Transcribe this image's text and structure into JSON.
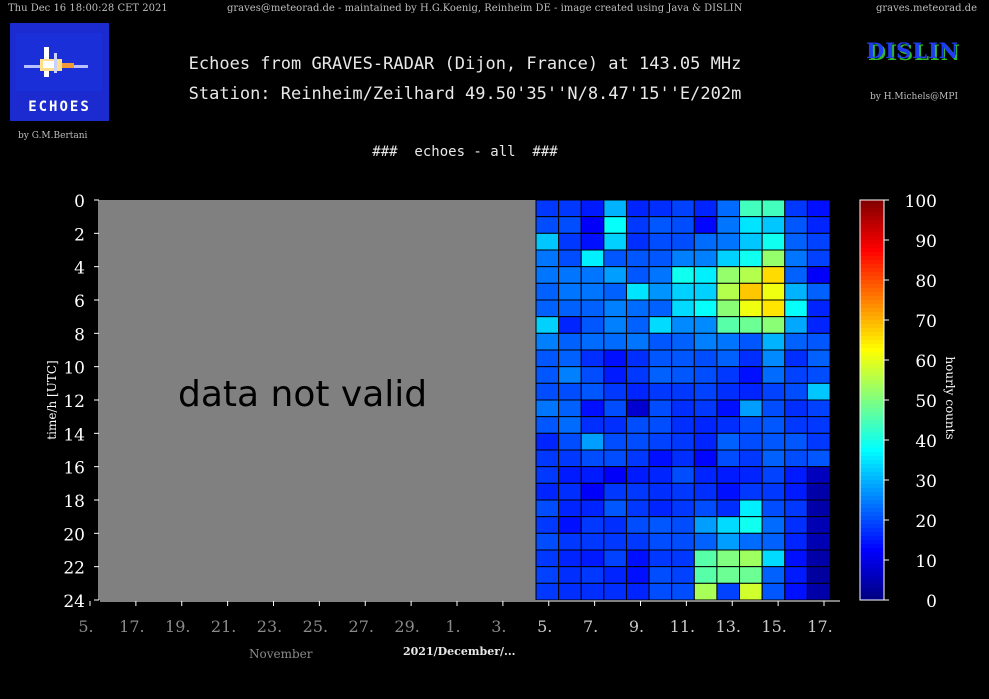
{
  "header": {
    "left": "Thu Dec 16 18:00:28 CET 2021",
    "center": "graves@meteorad.de - maintained by H.G.Koenig, Reinheim DE - image created using Java & DISLIN",
    "right": "graves.meteorad.de"
  },
  "logo": {
    "text": "ECHOES",
    "credit": "by G.M.Bertani"
  },
  "dislin": {
    "text": "DISLIN",
    "credit": "by H.Michels@MPI"
  },
  "colors": {
    "background": "#000000",
    "plot_area_invalid": "#808080",
    "grid": "#000000"
  },
  "chart_data": {
    "type": "heatmap",
    "title": "Echoes from GRAVES-RADAR (Dijon, France) at 143.05 MHz",
    "subtitle": "Station: Reinheim/Zeilhard 49.50'35''N/8.47'15''E/202m",
    "caption": "###  echoes - all  ###",
    "ylabel": "time/h [UTC]",
    "colorbar_label": "hourly counts",
    "ylim": [
      0,
      24
    ],
    "y_ticks": [
      "0",
      "2",
      "4",
      "6",
      "8",
      "10",
      "12",
      "14",
      "16",
      "18",
      "20",
      "22",
      "24"
    ],
    "x_ticks": [
      "5.",
      "17.",
      "19.",
      "21.",
      "23.",
      "25.",
      "27.",
      "29.",
      "1.",
      "3.",
      "5.",
      "7.",
      "9.",
      "11.",
      "13.",
      "15.",
      "17."
    ],
    "x_month_labels": {
      "november": "November",
      "december": "2021/December/..."
    },
    "colorbar_range": [
      0,
      100
    ],
    "colorbar_ticks": [
      "0",
      "10",
      "20",
      "30",
      "40",
      "50",
      "60",
      "70",
      "80",
      "90",
      "100"
    ],
    "invalid_region_label": "data not valid",
    "valid_days": [
      "4.",
      "5.",
      "6.",
      "7.",
      "8.",
      "9.",
      "10.",
      "11.",
      "12.",
      "13.",
      "14.",
      "15.",
      "16."
    ],
    "hourly_counts": [
      [
        18,
        18,
        15,
        30,
        16,
        17,
        19,
        16,
        23,
        44,
        44,
        18,
        14
      ],
      [
        20,
        20,
        12,
        38,
        18,
        21,
        20,
        13,
        24,
        35,
        32,
        21,
        16
      ],
      [
        32,
        18,
        14,
        33,
        17,
        20,
        20,
        23,
        24,
        32,
        39,
        22,
        19
      ],
      [
        24,
        20,
        36,
        21,
        21,
        21,
        25,
        25,
        33,
        39,
        52,
        24,
        19
      ],
      [
        24,
        24,
        24,
        28,
        21,
        24,
        39,
        36,
        52,
        55,
        66,
        22,
        12
      ],
      [
        22,
        24,
        24,
        22,
        35,
        27,
        33,
        33,
        55,
        68,
        61,
        30,
        22
      ],
      [
        22,
        22,
        22,
        25,
        23,
        22,
        34,
        38,
        51,
        61,
        65,
        38,
        16
      ],
      [
        33,
        16,
        21,
        25,
        22,
        34,
        26,
        26,
        46,
        48,
        51,
        29,
        16
      ],
      [
        25,
        22,
        23,
        23,
        24,
        21,
        22,
        25,
        24,
        21,
        30,
        22,
        21
      ],
      [
        21,
        22,
        17,
        14,
        17,
        21,
        21,
        20,
        22,
        17,
        26,
        17,
        22
      ],
      [
        21,
        25,
        20,
        15,
        18,
        22,
        21,
        20,
        18,
        14,
        23,
        19,
        20
      ],
      [
        20,
        20,
        21,
        18,
        16,
        18,
        18,
        19,
        17,
        16,
        19,
        20,
        32
      ],
      [
        24,
        22,
        14,
        20,
        8,
        20,
        17,
        18,
        14,
        28,
        20,
        17,
        19
      ],
      [
        21,
        23,
        17,
        17,
        20,
        20,
        17,
        16,
        17,
        20,
        21,
        18,
        18
      ],
      [
        16,
        20,
        28,
        20,
        20,
        19,
        18,
        16,
        22,
        20,
        21,
        21,
        18
      ],
      [
        18,
        18,
        20,
        20,
        18,
        14,
        17,
        13,
        20,
        18,
        22,
        20,
        21
      ],
      [
        18,
        15,
        15,
        12,
        15,
        16,
        20,
        16,
        15,
        16,
        19,
        15,
        6
      ],
      [
        16,
        17,
        12,
        18,
        18,
        17,
        18,
        17,
        14,
        18,
        18,
        15,
        4
      ],
      [
        20,
        16,
        16,
        21,
        18,
        16,
        18,
        20,
        17,
        36,
        20,
        18,
        4
      ],
      [
        18,
        14,
        18,
        17,
        20,
        21,
        20,
        28,
        34,
        39,
        23,
        17,
        5
      ],
      [
        20,
        18,
        18,
        18,
        18,
        20,
        20,
        22,
        28,
        23,
        22,
        16,
        5
      ],
      [
        18,
        16,
        15,
        19,
        14,
        18,
        18,
        46,
        50,
        53,
        34,
        14,
        4
      ],
      [
        19,
        17,
        18,
        16,
        14,
        20,
        19,
        46,
        48,
        48,
        22,
        15,
        3
      ],
      [
        18,
        17,
        17,
        17,
        16,
        20,
        20,
        54,
        19,
        58,
        21,
        14,
        4
      ]
    ]
  }
}
